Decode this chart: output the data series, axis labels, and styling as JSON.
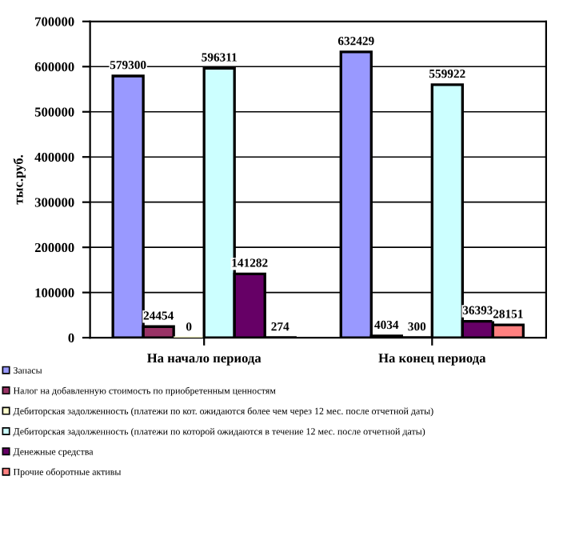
{
  "chart_data": {
    "type": "bar",
    "ylabel": "тыс.руб.",
    "categories": [
      "На начало периода",
      "На конец периода"
    ],
    "series": [
      {
        "name": "Запасы",
        "color": "#9999ff",
        "values": [
          579300,
          632429
        ]
      },
      {
        "name": "Налог на добавленную стоимость по приобретенным ценностям",
        "color": "#993366",
        "values": [
          24454,
          4034
        ]
      },
      {
        "name": "Дебиторская задолженность (платежи по кот. ожидаются более чем через 12 мес. после отчетной даты)",
        "color": "#ffffcc",
        "values": [
          0,
          300
        ]
      },
      {
        "name": "Дебиторская задолженность (платежи по которой ожидаются в течение 12 мес. после отчетной даты)",
        "color": "#ccffff",
        "values": [
          596311,
          559922
        ]
      },
      {
        "name": "Денежные средства",
        "color": "#660066",
        "values": [
          141282,
          36393
        ]
      },
      {
        "name": "Прочие оборотные активы",
        "color": "#ff8080",
        "values": [
          274,
          28151
        ]
      }
    ],
    "ylim": [
      0,
      700000
    ],
    "yticks": [
      0,
      100000,
      200000,
      300000,
      400000,
      500000,
      600000,
      700000
    ],
    "grid": "y",
    "legend": "bottom",
    "data_labels": true
  }
}
